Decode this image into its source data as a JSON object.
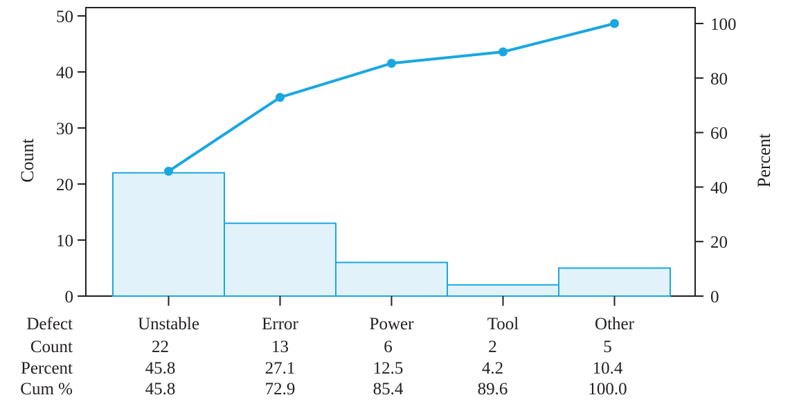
{
  "chart_data": {
    "type": "bar",
    "categories": [
      "Unstable",
      "Error",
      "Power",
      "Tool",
      "Other"
    ],
    "values": [
      22,
      13,
      6,
      2,
      5
    ],
    "cumulative_percent": [
      45.8,
      72.9,
      85.4,
      89.6,
      100.0
    ],
    "ylabel": "Count",
    "y2label": "Percent",
    "ylim": [
      0,
      50
    ],
    "yticks": [
      0,
      10,
      20,
      30,
      40,
      50
    ],
    "y2lim": [
      0,
      103
    ],
    "y2ticks": [
      0,
      20,
      40,
      60,
      80,
      100
    ],
    "grid": false,
    "colors": {
      "bar_fill": "#e1f2fb",
      "bar_stroke": "#1aa7e0",
      "line": "#1aa7e0",
      "axis": "#231f20"
    },
    "table": {
      "row_labels": [
        "Defect",
        "Count",
        "Percent",
        "Cum %"
      ],
      "rows": [
        [
          "Unstable",
          "Error",
          "Power",
          "Tool",
          "Other"
        ],
        [
          "22",
          "13",
          "6",
          "2",
          "5"
        ],
        [
          "45.8",
          "27.1",
          "12.5",
          "4.2",
          "10.4"
        ],
        [
          "45.8",
          "72.9",
          "85.4",
          "89.6",
          "100.0"
        ]
      ]
    }
  }
}
